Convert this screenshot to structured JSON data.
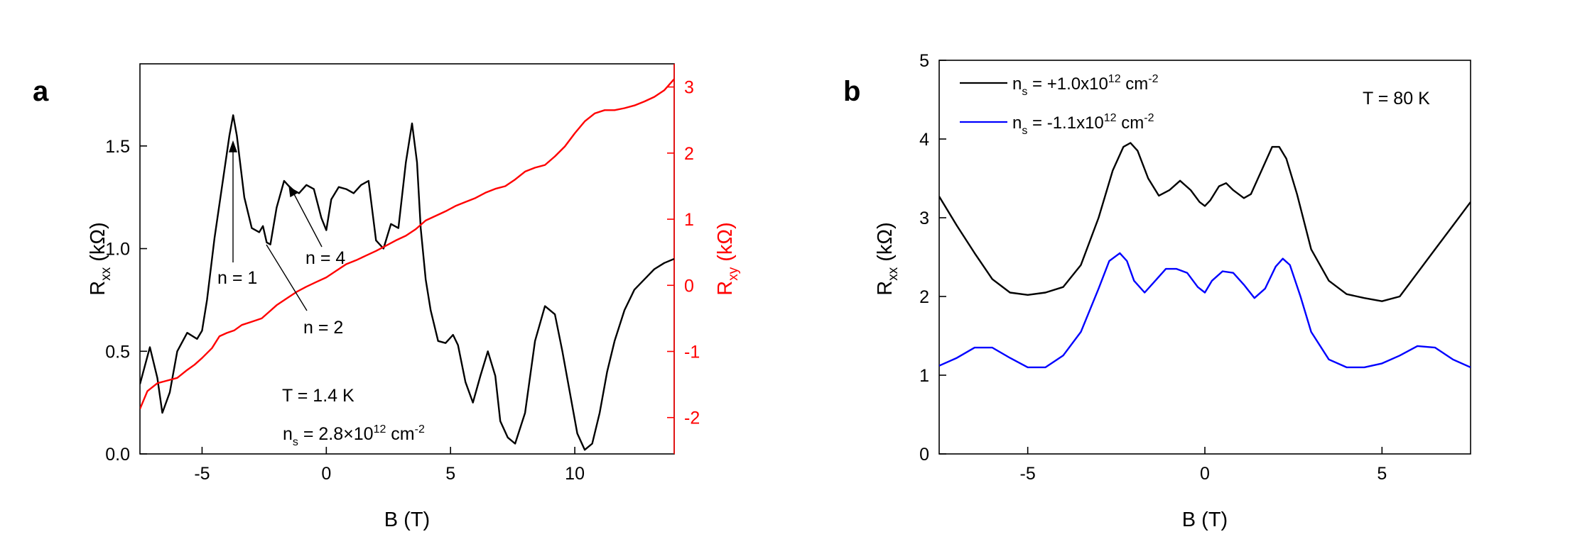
{
  "chart_data": [
    {
      "panel": "a",
      "type": "line",
      "title": "",
      "xlabel": "B (T)",
      "ylabel": {
        "main": "R",
        "sub": "xx",
        "unit": " (kΩ)"
      },
      "y2label": {
        "main": "R",
        "sub": "xy",
        "unit": " (kΩ)"
      },
      "xlim": [
        -7.5,
        14
      ],
      "ylim": [
        0.0,
        1.9
      ],
      "y2lim": [
        -2.55,
        3.35
      ],
      "xticks": [
        -5,
        0,
        5,
        10
      ],
      "xtick_labels": [
        "-5",
        "0",
        "5",
        "10"
      ],
      "yticks": [
        0.0,
        0.5,
        1.0,
        1.5
      ],
      "ytick_labels": [
        "0.0",
        "0.5",
        "1.0",
        "1.5"
      ],
      "y2ticks": [
        -2,
        -1,
        0,
        1,
        2,
        3
      ],
      "y2tick_labels": [
        "-2",
        "-1",
        "0",
        "1",
        "2",
        "3"
      ],
      "series": [
        {
          "name": "Rxx",
          "axis": "left",
          "color": "#000000",
          "x": [
            -7.5,
            -7.1,
            -6.8,
            -6.6,
            -6.3,
            -6.0,
            -5.6,
            -5.2,
            -5.0,
            -4.8,
            -4.5,
            -4.2,
            -3.9,
            -3.75,
            -3.6,
            -3.3,
            -3.0,
            -2.7,
            -2.55,
            -2.4,
            -2.25,
            -2.0,
            -1.7,
            -1.4,
            -1.1,
            -0.8,
            -0.5,
            -0.2,
            0.0,
            0.2,
            0.5,
            0.8,
            1.1,
            1.4,
            1.7,
            2.0,
            2.3,
            2.6,
            2.9,
            3.2,
            3.45,
            3.65,
            3.8,
            4.0,
            4.2,
            4.5,
            4.8,
            5.1,
            5.3,
            5.6,
            5.9,
            6.2,
            6.5,
            6.8,
            7.0,
            7.3,
            7.6,
            8.0,
            8.4,
            8.8,
            9.2,
            9.5,
            9.8,
            10.1,
            10.4,
            10.7,
            11.0,
            11.3,
            11.6,
            12.0,
            12.4,
            12.8,
            13.2,
            13.6,
            14.0
          ],
          "y": [
            0.34,
            0.52,
            0.37,
            0.2,
            0.3,
            0.5,
            0.59,
            0.56,
            0.6,
            0.75,
            1.05,
            1.3,
            1.55,
            1.65,
            1.55,
            1.25,
            1.1,
            1.08,
            1.11,
            1.03,
            1.02,
            1.2,
            1.33,
            1.29,
            1.27,
            1.31,
            1.29,
            1.15,
            1.09,
            1.24,
            1.3,
            1.29,
            1.27,
            1.31,
            1.33,
            1.04,
            1.0,
            1.12,
            1.1,
            1.42,
            1.61,
            1.42,
            1.1,
            0.85,
            0.7,
            0.55,
            0.54,
            0.58,
            0.53,
            0.35,
            0.25,
            0.38,
            0.5,
            0.38,
            0.16,
            0.08,
            0.05,
            0.2,
            0.55,
            0.72,
            0.68,
            0.5,
            0.3,
            0.1,
            0.02,
            0.05,
            0.2,
            0.4,
            0.55,
            0.7,
            0.8,
            0.85,
            0.9,
            0.93,
            0.95
          ]
        },
        {
          "name": "Rxy",
          "axis": "right",
          "color": "#ff0000",
          "x": [
            -7.5,
            -7.2,
            -6.8,
            -6.5,
            -6.0,
            -5.6,
            -5.3,
            -5.0,
            -4.6,
            -4.3,
            -4.0,
            -3.7,
            -3.4,
            -3.0,
            -2.6,
            -2.3,
            -2.0,
            -1.6,
            -1.2,
            -0.8,
            -0.4,
            0.0,
            0.4,
            0.8,
            1.2,
            1.6,
            2.0,
            2.4,
            2.8,
            3.2,
            3.6,
            4.0,
            4.4,
            4.8,
            5.2,
            5.6,
            6.0,
            6.4,
            6.8,
            7.2,
            7.6,
            8.0,
            8.4,
            8.8,
            9.2,
            9.6,
            10.0,
            10.4,
            10.8,
            11.2,
            11.6,
            12.0,
            12.4,
            12.8,
            13.2,
            13.6,
            14.0
          ],
          "y": [
            -1.87,
            -1.6,
            -1.48,
            -1.45,
            -1.4,
            -1.28,
            -1.2,
            -1.1,
            -0.95,
            -0.77,
            -0.72,
            -0.68,
            -0.6,
            -0.55,
            -0.5,
            -0.4,
            -0.3,
            -0.2,
            -0.1,
            -0.02,
            0.05,
            0.12,
            0.22,
            0.32,
            0.38,
            0.45,
            0.52,
            0.6,
            0.68,
            0.75,
            0.85,
            0.98,
            1.05,
            1.12,
            1.2,
            1.26,
            1.32,
            1.4,
            1.46,
            1.5,
            1.6,
            1.72,
            1.78,
            1.82,
            1.95,
            2.1,
            2.3,
            2.48,
            2.6,
            2.65,
            2.65,
            2.68,
            2.72,
            2.78,
            2.85,
            2.95,
            3.12
          ]
        }
      ],
      "annotations": {
        "n1": "n = 1",
        "n2": "n = 2",
        "n4": "n = 4",
        "temp": "T = 1.4 K",
        "density_pre": "n",
        "density_sub": "s",
        "density_mid": " = 2.8×10",
        "density_sup1": "12",
        "density_unit": " cm",
        "density_sup2": "-2"
      }
    },
    {
      "panel": "b",
      "type": "line",
      "title": "",
      "xlabel": "B (T)",
      "ylabel": {
        "main": "R",
        "sub": "xx",
        "unit": " (kΩ)"
      },
      "xlim": [
        -7.5,
        7.5
      ],
      "ylim": [
        0,
        5
      ],
      "xticks": [
        -5,
        0,
        5
      ],
      "xtick_labels": [
        "-5",
        "0",
        "5"
      ],
      "yticks": [
        0,
        1,
        2,
        3,
        4,
        5
      ],
      "ytick_labels": [
        "0",
        "1",
        "2",
        "3",
        "4",
        "5"
      ],
      "temperature_label": "T = 80 K",
      "series": [
        {
          "name": "ns = +1.0x10^12 cm^-2",
          "legend": {
            "pre": "n",
            "sub": "s",
            "mid": " = +1.0x10",
            "sup1": "12",
            "unit": " cm",
            "sup2": "-2"
          },
          "color": "#000000",
          "x": [
            -7.5,
            -7.0,
            -6.5,
            -6.0,
            -5.5,
            -5.0,
            -4.5,
            -4.0,
            -3.5,
            -3.0,
            -2.6,
            -2.3,
            -2.1,
            -1.9,
            -1.6,
            -1.3,
            -1.0,
            -0.7,
            -0.4,
            -0.15,
            0.0,
            0.15,
            0.4,
            0.6,
            0.8,
            1.1,
            1.3,
            1.6,
            1.9,
            2.1,
            2.3,
            2.6,
            3.0,
            3.5,
            4.0,
            4.5,
            5.0,
            5.5,
            6.0,
            6.5,
            7.0,
            7.5
          ],
          "y": [
            3.27,
            2.9,
            2.55,
            2.22,
            2.05,
            2.02,
            2.05,
            2.12,
            2.4,
            3.0,
            3.6,
            3.9,
            3.95,
            3.85,
            3.5,
            3.28,
            3.35,
            3.47,
            3.35,
            3.2,
            3.15,
            3.22,
            3.4,
            3.44,
            3.35,
            3.25,
            3.3,
            3.6,
            3.9,
            3.9,
            3.75,
            3.3,
            2.6,
            2.2,
            2.03,
            1.98,
            1.94,
            2.0,
            2.3,
            2.6,
            2.9,
            3.2
          ]
        },
        {
          "name": "ns = -1.1x10^12 cm^-2",
          "legend": {
            "pre": "n",
            "sub": "s",
            "mid": " = -1.1x10",
            "sup1": "12",
            "unit": " cm",
            "sup2": "-2"
          },
          "color": "#0000ff",
          "x": [
            -7.5,
            -7.0,
            -6.5,
            -6.0,
            -5.5,
            -5.0,
            -4.5,
            -4.0,
            -3.5,
            -3.0,
            -2.7,
            -2.4,
            -2.2,
            -2.0,
            -1.7,
            -1.4,
            -1.1,
            -0.8,
            -0.5,
            -0.2,
            0.0,
            0.2,
            0.5,
            0.8,
            1.1,
            1.4,
            1.7,
            2.0,
            2.2,
            2.4,
            2.7,
            3.0,
            3.5,
            4.0,
            4.5,
            5.0,
            5.5,
            6.0,
            6.5,
            7.0,
            7.5
          ],
          "y": [
            1.12,
            1.22,
            1.35,
            1.35,
            1.22,
            1.1,
            1.1,
            1.25,
            1.55,
            2.1,
            2.45,
            2.55,
            2.45,
            2.2,
            2.05,
            2.2,
            2.35,
            2.35,
            2.3,
            2.12,
            2.05,
            2.2,
            2.32,
            2.3,
            2.15,
            1.98,
            2.1,
            2.38,
            2.48,
            2.4,
            2.0,
            1.55,
            1.2,
            1.1,
            1.1,
            1.15,
            1.25,
            1.37,
            1.35,
            1.2,
            1.1
          ]
        }
      ]
    }
  ]
}
